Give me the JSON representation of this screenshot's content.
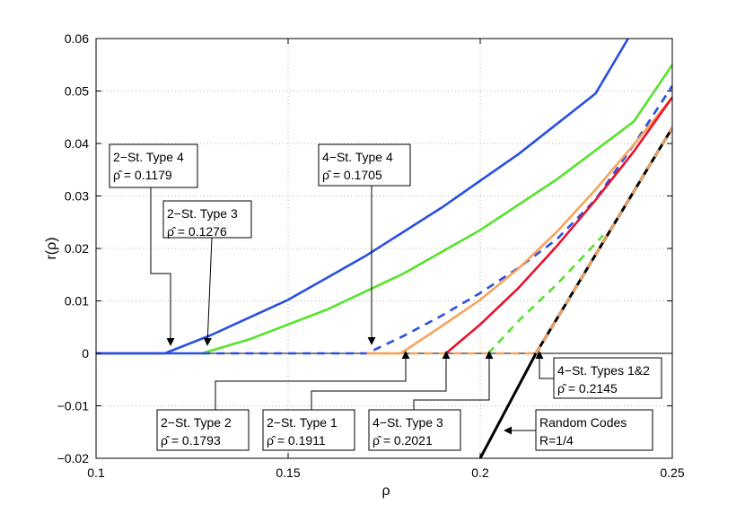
{
  "chart_data": {
    "type": "line",
    "xlabel": "ρ",
    "ylabel": "r(ρ)",
    "xlim": [
      0.1,
      0.25
    ],
    "ylim": [
      -0.02,
      0.06
    ],
    "xticks": [
      0.1,
      0.15,
      0.2,
      0.25
    ],
    "xtick_labels": [
      "0.1",
      "0.15",
      "0.2",
      "0.25"
    ],
    "yticks": [
      -0.02,
      -0.01,
      0,
      0.01,
      0.02,
      0.03,
      0.04,
      0.05,
      0.06
    ],
    "ytick_labels": [
      "−0.02",
      "−0.01",
      "0",
      "0.01",
      "0.02",
      "0.03",
      "0.04",
      "0.05",
      "0.06"
    ],
    "grid": true,
    "series": [
      {
        "color": "#2a4fe0",
        "style": "solid",
        "x": [
          0.1,
          0.1179,
          0.13,
          0.15,
          0.17,
          0.19,
          0.21,
          0.23,
          0.2385
        ],
        "y": [
          0,
          0,
          0.0035,
          0.0102,
          0.0185,
          0.0278,
          0.038,
          0.0495,
          0.06
        ]
      },
      {
        "color": "#55e32a",
        "style": "solid",
        "x": [
          0.1276,
          0.14,
          0.16,
          0.18,
          0.2,
          0.22,
          0.24,
          0.25
        ],
        "y": [
          0,
          0.0027,
          0.0083,
          0.0152,
          0.0235,
          0.0332,
          0.0442,
          0.055
        ]
      },
      {
        "color": "#2a4fe0",
        "style": "dashed",
        "x": [
          0.1276,
          0.1705,
          0.18,
          0.19,
          0.2,
          0.21,
          0.22,
          0.23,
          0.24,
          0.25
        ],
        "y": [
          0,
          0,
          0.0033,
          0.0072,
          0.0115,
          0.0163,
          0.0218,
          0.0293,
          0.0398,
          0.051
        ]
      },
      {
        "color": "#f7a35b",
        "style": "solid",
        "x": [
          0.1705,
          0.1793,
          0.19,
          0.2,
          0.21,
          0.22,
          0.23,
          0.24,
          0.25
        ],
        "y": [
          0,
          0,
          0.0052,
          0.0102,
          0.0162,
          0.0232,
          0.0312,
          0.0398,
          0.0488
        ]
      },
      {
        "color": "#f7a35b",
        "style": "dashed",
        "x": [
          0.1705,
          0.2145
        ],
        "y": [
          0,
          0
        ]
      },
      {
        "color": "#e8112d",
        "style": "solid",
        "x": [
          0.1911,
          0.2,
          0.21,
          0.22,
          0.23,
          0.24,
          0.25
        ],
        "y": [
          0,
          0.0055,
          0.0125,
          0.0205,
          0.0292,
          0.0385,
          0.0488
        ]
      },
      {
        "color": "#55e32a",
        "style": "dashed",
        "x": [
          0.2021,
          0.21,
          0.22,
          0.232
        ],
        "y": [
          0,
          0.0062,
          0.0132,
          0.0225
        ]
      },
      {
        "color": "#000000",
        "style": "solid",
        "x": [
          0.2,
          0.2145,
          0.25
        ],
        "y": [
          -0.02,
          0,
          0.043
        ]
      },
      {
        "color": "#f7a35b",
        "style": "dashed",
        "x": [
          0.2145,
          0.25
        ],
        "y": [
          0,
          0.043
        ]
      }
    ],
    "annotations": [
      {
        "label": "2−St. Type 4",
        "rho_label": "ρ̂ = 0.1179"
      },
      {
        "label": "2−St. Type 3",
        "rho_label": "ρ̂ = 0.1276"
      },
      {
        "label": "4−St. Type 4",
        "rho_label": "ρ̂ = 0.1705"
      },
      {
        "label": "2−St. Type 2",
        "rho_label": "ρ̂ = 0.1793"
      },
      {
        "label": "2−St. Type 1",
        "rho_label": "ρ̂ = 0.1911"
      },
      {
        "label": "4−St. Type 3",
        "rho_label": "ρ̂ = 0.2021"
      },
      {
        "label": "4−St. Types 1&2",
        "rho_label": "ρ̂ = 0.2145"
      },
      {
        "label": "Random Codes",
        "rho_label": "R=1/4"
      }
    ]
  }
}
